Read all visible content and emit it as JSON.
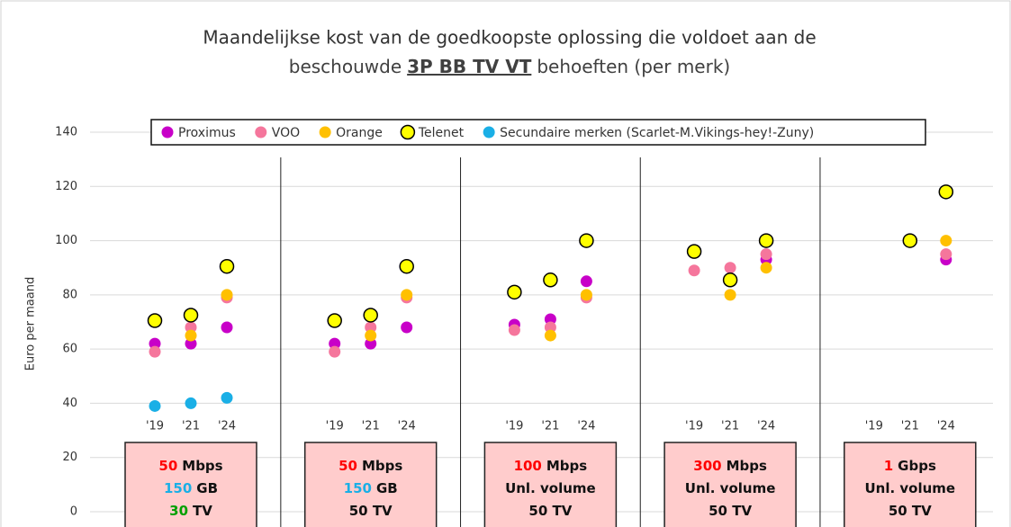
{
  "chart_data": {
    "type": "scatter",
    "title": {
      "line1": "Maandelijkse kost van de goedkoopste oplossing die voldoet aan de",
      "line2_before": "beschouwde",
      "line2_underlined": "3P BB TV VT",
      "line2_after": "behoeften (per merk)"
    },
    "y_label": "Euro per maand",
    "ylim": [
      0,
      140
    ],
    "yticks": [
      0,
      20,
      40,
      60,
      80,
      100,
      120,
      140
    ],
    "grid": true,
    "categories": [
      "'19",
      "'21",
      "'24",
      "'19",
      "'21",
      "'24",
      "'19",
      "'21",
      "'24",
      "'19",
      "'21",
      "'24",
      "'19",
      "'21",
      "'24"
    ],
    "series": [
      {
        "name": "Proximus",
        "color": "#c800c8",
        "values": [
          62,
          62,
          68,
          62,
          62,
          68,
          69,
          71,
          85,
          null,
          null,
          93,
          null,
          null,
          93
        ]
      },
      {
        "name": "VOO",
        "color": "#f5769c",
        "values": [
          59,
          68,
          79,
          59,
          68,
          79,
          67,
          68,
          79,
          89,
          90,
          95,
          null,
          null,
          95
        ]
      },
      {
        "name": "Orange",
        "color": "#ffc000",
        "values": [
          null,
          65,
          80,
          null,
          65,
          80,
          null,
          65,
          80,
          null,
          80,
          90,
          null,
          null,
          100
        ]
      },
      {
        "name": "Telenet",
        "color": "#ffff00",
        "stroke": "#000000",
        "values": [
          70.5,
          72.5,
          90.5,
          70.5,
          72.5,
          90.5,
          81,
          85.5,
          100,
          96,
          85.5,
          100,
          null,
          100,
          118
        ]
      },
      {
        "name": "Secundaire merken (Scarlet-M.Vikings-hey!-Zuny)",
        "color": "#1aafe6",
        "values": [
          39,
          40,
          42,
          null,
          null,
          null,
          null,
          null,
          null,
          null,
          null,
          null,
          null,
          null,
          null
        ]
      }
    ],
    "boxes": [
      [
        [
          {
            "text": "50",
            "color": "#ff0000"
          },
          {
            "text": "Mbps"
          }
        ],
        [
          {
            "text": "150",
            "color": "#1aafe6"
          },
          {
            "text": "GB"
          }
        ],
        [
          {
            "text": "30",
            "color": "#00a000"
          },
          {
            "text": "TV"
          }
        ]
      ],
      [
        [
          {
            "text": "50",
            "color": "#ff0000"
          },
          {
            "text": "Mbps"
          }
        ],
        [
          {
            "text": "150",
            "color": "#1aafe6"
          },
          {
            "text": "GB"
          }
        ],
        [
          {
            "text": "50 TV"
          }
        ]
      ],
      [
        [
          {
            "text": "100",
            "color": "#ff0000"
          },
          {
            "text": "Mbps"
          }
        ],
        [
          {
            "text": "Unl. volume"
          }
        ],
        [
          {
            "text": "50 TV"
          }
        ]
      ],
      [
        [
          {
            "text": "300",
            "color": "#ff0000"
          },
          {
            "text": "Mbps"
          }
        ],
        [
          {
            "text": "Unl. volume"
          }
        ],
        [
          {
            "text": "50 TV"
          }
        ]
      ],
      [
        [
          {
            "text": "1",
            "color": "#ff0000"
          },
          {
            "text": "Gbps"
          }
        ],
        [
          {
            "text": "Unl. volume"
          }
        ],
        [
          {
            "text": "50 TV"
          }
        ]
      ]
    ]
  }
}
